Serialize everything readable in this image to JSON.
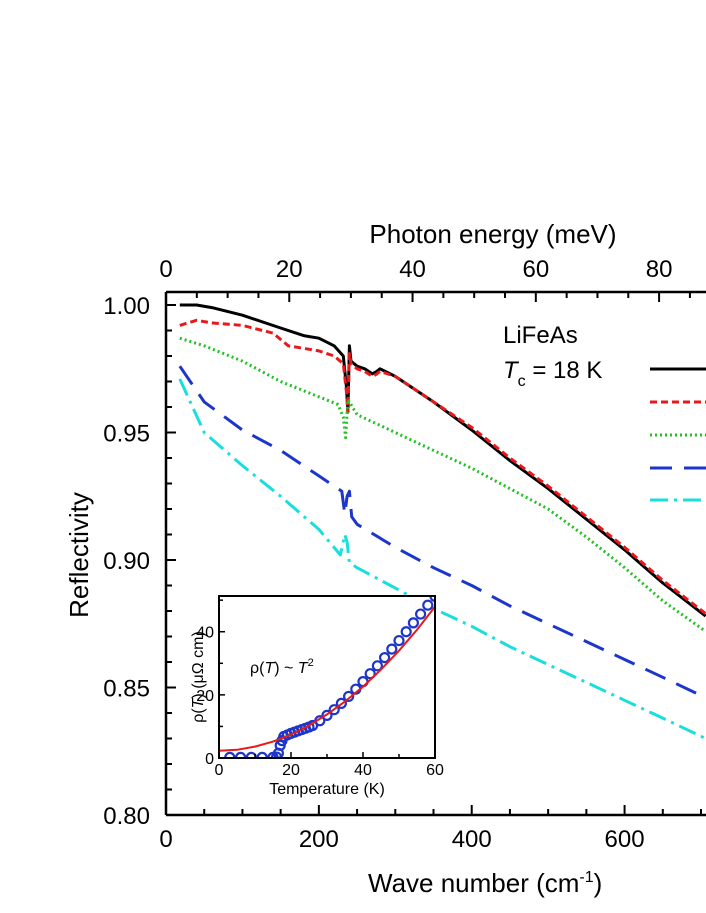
{
  "chart_data": [
    {
      "type": "line",
      "xlabel": "Wave number (cm",
      "xlabel_sup": "-1",
      "xlabel_end": ")",
      "ylabel": "Reflectivity",
      "top_xlabel": "Photon energy (meV)",
      "xlim": [
        0,
        700
      ],
      "ylim": [
        0.8,
        1.005
      ],
      "x_ticks": [
        0,
        200,
        400,
        600
      ],
      "y_ticks": [
        0.8,
        0.85,
        0.9,
        0.95,
        1.0
      ],
      "y_tick_labels": [
        "0.80",
        "0.85",
        "0.90",
        "0.95",
        "1.00"
      ],
      "top_x_ticks": [
        0,
        20,
        40,
        60,
        80
      ],
      "top_x_scale_meV_per_cm": 0.124,
      "annotation": {
        "line1": "LiFeAs",
        "line2_italic": "T",
        "line2_sub": "c",
        "line2_rest": " = 18 K"
      },
      "legend_placement": "right (partially cropped)",
      "series": [
        {
          "color": "#000000",
          "dash": "solid",
          "x": [
            18,
            40,
            60,
            100,
            150,
            180,
            200,
            220,
            232,
            236,
            238,
            240,
            242,
            250,
            260,
            270,
            276,
            280,
            300,
            350,
            400,
            450,
            500,
            550,
            600,
            650,
            706
          ],
          "y": [
            1.0,
            1.0,
            0.999,
            0.996,
            0.991,
            0.988,
            0.987,
            0.984,
            0.98,
            0.968,
            0.958,
            0.984,
            0.978,
            0.976,
            0.975,
            0.973,
            0.974,
            0.975,
            0.972,
            0.962,
            0.951,
            0.939,
            0.928,
            0.916,
            0.904,
            0.891,
            0.878
          ]
        },
        {
          "color": "#e8191a",
          "dash": "short-dash",
          "x": [
            18,
            40,
            60,
            100,
            140,
            160,
            200,
            220,
            232,
            236,
            238,
            240,
            242,
            250,
            260,
            270,
            276,
            280,
            300,
            350,
            400,
            450,
            500,
            550,
            600,
            650,
            706
          ],
          "y": [
            0.992,
            0.994,
            0.993,
            0.992,
            0.989,
            0.984,
            0.982,
            0.98,
            0.977,
            0.966,
            0.958,
            0.981,
            0.977,
            0.975,
            0.974,
            0.972,
            0.973,
            0.974,
            0.972,
            0.962,
            0.952,
            0.94,
            0.929,
            0.917,
            0.905,
            0.892,
            0.879
          ]
        },
        {
          "color": "#22c122",
          "dash": "dotted",
          "x": [
            18,
            50,
            100,
            150,
            200,
            225,
            232,
            235,
            238,
            240,
            250,
            300,
            350,
            400,
            450,
            500,
            550,
            600,
            650,
            706
          ],
          "y": [
            0.987,
            0.984,
            0.978,
            0.97,
            0.964,
            0.961,
            0.956,
            0.948,
            0.963,
            0.962,
            0.957,
            0.95,
            0.943,
            0.936,
            0.928,
            0.92,
            0.909,
            0.897,
            0.884,
            0.872
          ]
        },
        {
          "color": "#1d36c9",
          "dash": "long-dash",
          "x": [
            18,
            50,
            100,
            150,
            200,
            230,
            234,
            237,
            240,
            243,
            250,
            300,
            350,
            400,
            450,
            500,
            550,
            600,
            650,
            706
          ],
          "y": [
            0.976,
            0.962,
            0.951,
            0.943,
            0.933,
            0.927,
            0.918,
            0.925,
            0.927,
            0.917,
            0.914,
            0.905,
            0.897,
            0.89,
            0.882,
            0.875,
            0.868,
            0.861,
            0.854,
            0.846
          ]
        },
        {
          "color": "#19dede",
          "dash": "dash-dot",
          "x": [
            18,
            50,
            100,
            150,
            200,
            228,
            231,
            234,
            237,
            240,
            250,
            300,
            350,
            400,
            450,
            500,
            550,
            600,
            650,
            706
          ],
          "y": [
            0.971,
            0.95,
            0.937,
            0.925,
            0.912,
            0.902,
            0.906,
            0.91,
            0.907,
            0.899,
            0.897,
            0.889,
            0.881,
            0.874,
            0.866,
            0.859,
            0.852,
            0.845,
            0.838,
            0.83
          ]
        }
      ]
    },
    {
      "type": "scatter",
      "xlabel": "Temperature (K)",
      "ylabel_prefix": "ρ(",
      "ylabel_italic": "T",
      "ylabel_suffix": ") (μΩ cm)",
      "annotation_prefix": "ρ(",
      "annotation_italic": "T",
      "annotation_middle": ") ~ ",
      "annotation_italic2": "T",
      "annotation_sup": "2",
      "xlim": [
        0,
        60
      ],
      "ylim": [
        0,
        50
      ],
      "x_ticks": [
        0,
        20,
        40,
        60
      ],
      "y_ticks": [
        0,
        20,
        40
      ],
      "points_color": "#1d36c9",
      "fit_color": "#e8191a",
      "data": {
        "x": [
          3,
          6,
          9,
          12,
          15,
          16,
          16.5,
          17,
          17.5,
          18,
          19,
          20,
          21,
          22,
          23,
          24,
          25,
          26,
          28,
          30,
          32,
          34,
          36,
          38,
          40,
          42,
          44,
          46,
          48,
          50,
          52,
          54,
          56,
          58,
          60
        ],
        "y": [
          0.2,
          0.2,
          0.2,
          0.2,
          0.2,
          0.3,
          1.5,
          4.0,
          5.5,
          6.8,
          7.3,
          7.8,
          8.2,
          8.6,
          9.0,
          9.4,
          9.8,
          10.3,
          11.8,
          13.5,
          15.3,
          17.3,
          19.5,
          21.8,
          24.2,
          26.7,
          29.2,
          31.8,
          34.5,
          37.2,
          40.0,
          42.8,
          45.6,
          48.4,
          51.2
        ]
      },
      "fit": {
        "x": [
          0,
          5,
          10,
          15,
          20,
          25,
          30,
          35,
          40,
          45,
          50,
          55,
          60
        ],
        "y": [
          2.3,
          2.6,
          3.6,
          5.2,
          7.4,
          10.3,
          13.8,
          17.9,
          22.6,
          28.0,
          34.0,
          40.6,
          47.9
        ]
      }
    }
  ]
}
